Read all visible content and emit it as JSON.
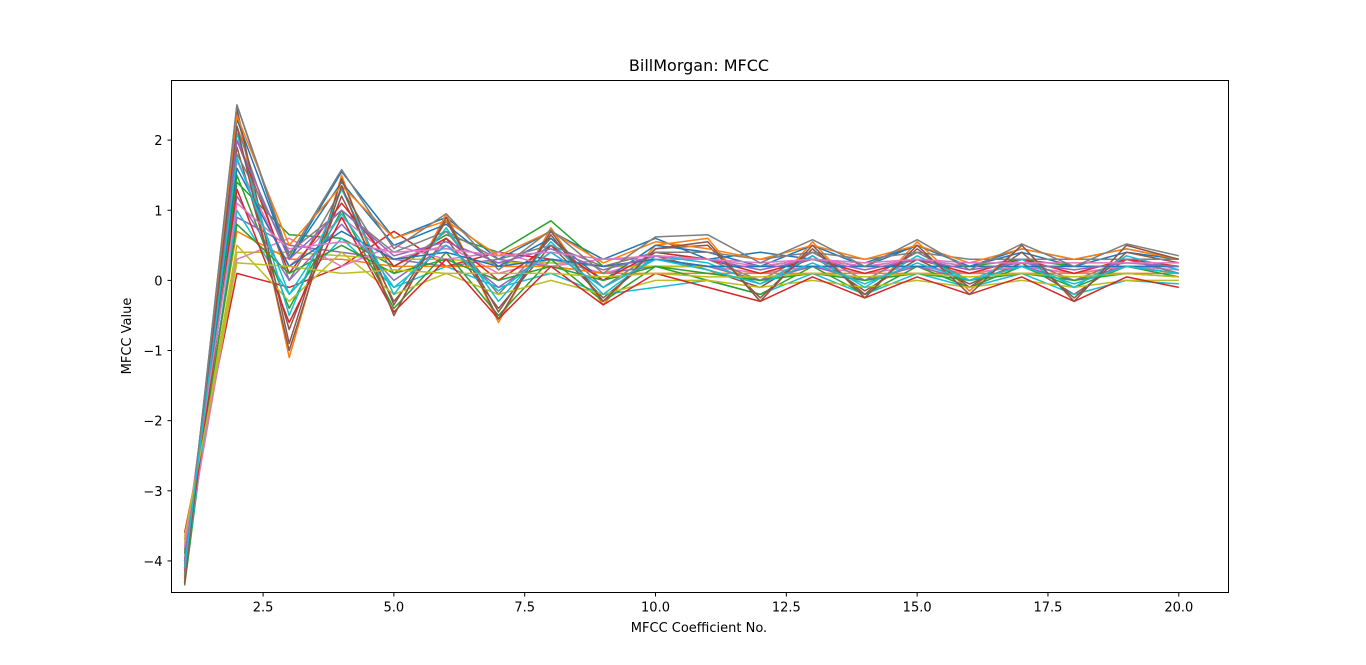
{
  "chart_data": {
    "type": "line",
    "title": "BillMorgan: MFCC",
    "xlabel": "MFCC Coefficient No.",
    "ylabel": "MFCC Value",
    "xlim": [
      0.75,
      20.95
    ],
    "ylim": [
      -4.45,
      2.85
    ],
    "x": [
      1,
      2,
      3,
      4,
      5,
      6,
      7,
      8,
      9,
      10,
      11,
      12,
      13,
      14,
      15,
      16,
      17,
      18,
      19,
      20
    ],
    "xticks": [
      2.5,
      5.0,
      7.5,
      10.0,
      12.5,
      15.0,
      17.5,
      20.0
    ],
    "xtick_labels": [
      "2.5",
      "5.0",
      "7.5",
      "10.0",
      "12.5",
      "15.0",
      "17.5",
      "20.0"
    ],
    "yticks": [
      -4,
      -3,
      -2,
      -1,
      0,
      1,
      2
    ],
    "ytick_labels": [
      "−4",
      "−3",
      "−2",
      "−1",
      "0",
      "1",
      "2"
    ],
    "grid": false,
    "legend": "none",
    "colors": [
      "#1f77b4",
      "#ff7f0e",
      "#2ca02c",
      "#d62728",
      "#9467bd",
      "#8c564b",
      "#e377c2",
      "#7f7f7f",
      "#bcbd22",
      "#17becf"
    ],
    "series": [
      {
        "values": [
          -4.2,
          2.5,
          0.3,
          1.55,
          0.6,
          0.9,
          0.3,
          0.7,
          0.3,
          0.6,
          0.3,
          0.4,
          0.3,
          0.25,
          0.5,
          0.2,
          0.45,
          0.3,
          0.45,
          0.3
        ]
      },
      {
        "values": [
          -4.3,
          2.4,
          -1.1,
          1.5,
          -0.5,
          0.95,
          -0.6,
          0.75,
          -0.35,
          0.5,
          0.6,
          -0.3,
          0.55,
          -0.25,
          0.55,
          -0.15,
          0.5,
          -0.3,
          0.5,
          0.3
        ]
      },
      {
        "values": [
          -4.35,
          1.4,
          0.65,
          0.6,
          0.2,
          0.65,
          0.4,
          0.85,
          0.2,
          0.3,
          0.2,
          0.2,
          0.3,
          0.2,
          0.3,
          0.2,
          0.3,
          0.2,
          0.2,
          0.2
        ]
      },
      {
        "values": [
          -3.6,
          0.1,
          -0.1,
          0.2,
          0.7,
          0.2,
          0.4,
          0.3,
          0.2,
          0.2,
          0.2,
          0.2,
          0.3,
          0.2,
          0.2,
          0.1,
          0.2,
          0.1,
          0.2,
          0.1
        ]
      },
      {
        "values": [
          -4.0,
          0.9,
          0.5,
          0.4,
          0.3,
          0.2,
          0.3,
          0.2,
          0.1,
          0.2,
          0.2,
          0.2,
          0.2,
          0.2,
          0.2,
          0.2,
          0.2,
          0.2,
          0.2,
          0.2
        ]
      },
      {
        "values": [
          -4.25,
          1.9,
          -0.7,
          1.2,
          -0.3,
          0.6,
          -0.4,
          0.5,
          -0.25,
          0.35,
          0.15,
          -0.1,
          0.35,
          -0.15,
          0.3,
          -0.05,
          0.25,
          -0.2,
          0.3,
          0.1
        ]
      },
      {
        "values": [
          -3.9,
          1.7,
          0.2,
          0.9,
          0.3,
          0.5,
          0.1,
          0.3,
          0.1,
          0.3,
          0.2,
          0.1,
          0.2,
          0.1,
          0.2,
          0.1,
          0.2,
          0.1,
          0.2,
          0.15
        ]
      },
      {
        "values": [
          -4.1,
          2.2,
          0.0,
          1.3,
          0.1,
          0.7,
          -0.2,
          0.6,
          -0.1,
          0.4,
          0.3,
          0.0,
          0.4,
          0.0,
          0.4,
          0.0,
          0.3,
          0.0,
          0.3,
          0.1
        ]
      },
      {
        "values": [
          -3.8,
          0.4,
          0.4,
          0.35,
          0.3,
          0.3,
          0.25,
          0.25,
          0.2,
          0.2,
          0.2,
          0.2,
          0.2,
          0.2,
          0.2,
          0.2,
          0.2,
          0.2,
          0.2,
          0.2
        ]
      },
      {
        "values": [
          -4.2,
          1.0,
          -0.2,
          0.6,
          -0.1,
          0.2,
          -0.1,
          0.1,
          -0.2,
          -0.1,
          0.0,
          -0.2,
          0.1,
          -0.2,
          0.1,
          -0.1,
          0.1,
          -0.2,
          0.0,
          -0.05
        ]
      },
      {
        "values": [
          -4.3,
          2.3,
          0.3,
          1.4,
          0.5,
          0.8,
          0.2,
          0.6,
          0.0,
          0.5,
          0.4,
          0.2,
          0.5,
          0.2,
          0.5,
          0.2,
          0.4,
          0.2,
          0.4,
          0.3
        ]
      },
      {
        "values": [
          -3.7,
          0.7,
          0.3,
          0.3,
          0.2,
          0.2,
          0.2,
          0.2,
          0.1,
          0.1,
          0.1,
          0.1,
          0.1,
          0.1,
          0.1,
          0.1,
          0.1,
          0.1,
          0.1,
          0.1
        ]
      },
      {
        "values": [
          -4.0,
          1.5,
          -0.4,
          1.0,
          -0.4,
          0.4,
          -0.5,
          0.3,
          -0.3,
          0.2,
          0.0,
          -0.2,
          0.2,
          -0.2,
          0.2,
          -0.1,
          0.2,
          -0.1,
          0.2,
          0.05
        ]
      },
      {
        "values": [
          -4.15,
          2.0,
          0.1,
          1.1,
          0.2,
          0.6,
          0.0,
          0.5,
          0.0,
          0.4,
          0.3,
          0.1,
          0.3,
          0.1,
          0.3,
          0.1,
          0.3,
          0.1,
          0.3,
          0.2
        ]
      },
      {
        "values": [
          -3.85,
          1.2,
          0.0,
          0.8,
          0.0,
          0.5,
          -0.1,
          0.4,
          -0.1,
          0.3,
          0.2,
          0.0,
          0.2,
          0.0,
          0.2,
          0.0,
          0.2,
          0.0,
          0.2,
          0.1
        ]
      },
      {
        "values": [
          -4.25,
          2.45,
          -0.9,
          1.45,
          -0.35,
          0.85,
          -0.45,
          0.65,
          -0.3,
          0.45,
          0.5,
          -0.25,
          0.45,
          -0.2,
          0.45,
          -0.1,
          0.4,
          -0.25,
          0.4,
          0.25
        ]
      },
      {
        "values": [
          -3.95,
          0.3,
          0.6,
          0.2,
          0.5,
          0.3,
          0.4,
          0.2,
          0.3,
          0.3,
          0.3,
          0.2,
          0.3,
          0.2,
          0.3,
          0.2,
          0.2,
          0.2,
          0.2,
          0.2
        ]
      },
      {
        "values": [
          -4.1,
          1.8,
          0.4,
          1.0,
          0.4,
          0.7,
          0.3,
          0.5,
          0.2,
          0.4,
          0.4,
          0.3,
          0.4,
          0.3,
          0.4,
          0.3,
          0.3,
          0.3,
          0.3,
          0.3
        ]
      },
      {
        "values": [
          -3.75,
          0.5,
          -0.3,
          0.4,
          -0.2,
          0.1,
          -0.2,
          0.0,
          -0.2,
          0.0,
          0.0,
          -0.1,
          0.0,
          -0.1,
          0.0,
          -0.1,
          0.0,
          -0.1,
          0.0,
          0.0
        ]
      },
      {
        "values": [
          -4.2,
          2.1,
          -0.5,
          1.3,
          -0.2,
          0.75,
          -0.3,
          0.55,
          -0.2,
          0.35,
          0.25,
          -0.05,
          0.35,
          -0.1,
          0.35,
          0.0,
          0.3,
          -0.1,
          0.35,
          0.15
        ]
      },
      {
        "values": [
          -4.05,
          1.6,
          0.2,
          0.7,
          0.3,
          0.4,
          0.2,
          0.3,
          0.2,
          0.3,
          0.2,
          0.2,
          0.2,
          0.2,
          0.2,
          0.2,
          0.2,
          0.2,
          0.2,
          0.2
        ]
      },
      {
        "values": [
          -4.3,
          2.35,
          0.5,
          1.35,
          0.6,
          0.85,
          0.35,
          0.7,
          0.25,
          0.55,
          0.45,
          0.3,
          0.5,
          0.3,
          0.5,
          0.25,
          0.45,
          0.3,
          0.45,
          0.3
        ]
      },
      {
        "values": [
          -3.9,
          0.8,
          0.1,
          0.5,
          0.1,
          0.3,
          0.0,
          0.2,
          0.0,
          0.2,
          0.1,
          0.0,
          0.1,
          0.0,
          0.1,
          0.0,
          0.1,
          0.0,
          0.1,
          0.05
        ]
      },
      {
        "values": [
          -4.15,
          1.3,
          -0.6,
          0.9,
          -0.45,
          0.3,
          -0.55,
          0.2,
          -0.35,
          0.1,
          -0.1,
          -0.3,
          0.05,
          -0.25,
          0.05,
          -0.2,
          0.05,
          -0.3,
          0.05,
          -0.1
        ]
      },
      {
        "values": [
          -4.0,
          2.0,
          0.3,
          1.0,
          0.35,
          0.55,
          0.25,
          0.45,
          0.15,
          0.35,
          0.3,
          0.15,
          0.3,
          0.15,
          0.3,
          0.15,
          0.25,
          0.15,
          0.25,
          0.2
        ]
      },
      {
        "values": [
          -4.33,
          2.2,
          -1.0,
          1.35,
          -0.5,
          0.9,
          -0.55,
          0.7,
          -0.3,
          0.45,
          0.55,
          -0.3,
          0.5,
          -0.25,
          0.5,
          -0.2,
          0.5,
          -0.3,
          0.5,
          0.3
        ]
      },
      {
        "values": [
          -3.8,
          1.1,
          0.45,
          0.55,
          0.4,
          0.45,
          0.35,
          0.4,
          0.3,
          0.35,
          0.3,
          0.25,
          0.3,
          0.25,
          0.3,
          0.25,
          0.25,
          0.25,
          0.25,
          0.25
        ]
      },
      {
        "values": [
          -4.2,
          2.5,
          0.35,
          1.58,
          0.45,
          0.95,
          0.15,
          0.72,
          0.1,
          0.62,
          0.65,
          0.25,
          0.58,
          0.2,
          0.58,
          0.15,
          0.52,
          0.2,
          0.52,
          0.35
        ]
      },
      {
        "values": [
          -3.65,
          0.25,
          0.2,
          0.1,
          0.15,
          0.1,
          0.1,
          0.1,
          0.05,
          0.1,
          0.05,
          0.05,
          0.1,
          0.05,
          0.1,
          0.05,
          0.1,
          0.05,
          0.1,
          0.05
        ]
      },
      {
        "values": [
          -4.1,
          1.75,
          -0.2,
          0.95,
          -0.1,
          0.5,
          -0.15,
          0.4,
          -0.1,
          0.3,
          0.15,
          -0.05,
          0.25,
          -0.05,
          0.25,
          0.0,
          0.2,
          -0.05,
          0.2,
          0.1
        ]
      }
    ]
  }
}
